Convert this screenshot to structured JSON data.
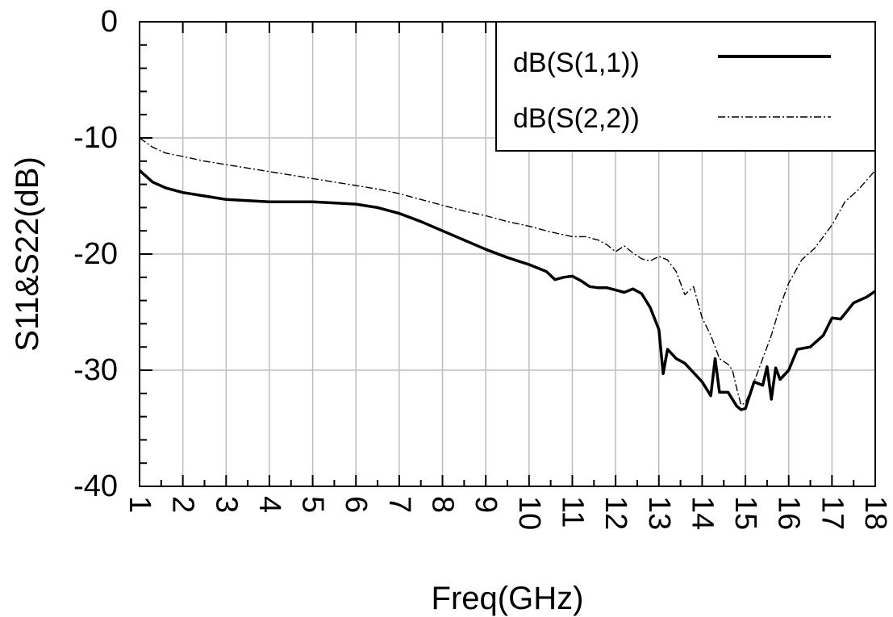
{
  "chart_data": {
    "type": "line",
    "xlabel": "Freq(GHz)",
    "ylabel": "S11&S22(dB)",
    "xlim": [
      1,
      18
    ],
    "ylim": [
      -40,
      0
    ],
    "x_ticks": [
      1,
      2,
      3,
      4,
      5,
      6,
      7,
      8,
      9,
      10,
      11,
      12,
      13,
      14,
      15,
      16,
      17,
      18
    ],
    "y_ticks": [
      0,
      -10,
      -20,
      -30,
      -40
    ],
    "grid": true,
    "legend": {
      "position": "top-right"
    },
    "series": [
      {
        "name": "dB(S(1,1))",
        "color": "#000000",
        "style": "solid",
        "x": [
          1,
          1.3,
          1.6,
          2,
          2.5,
          3,
          3.5,
          4,
          4.5,
          5,
          5.5,
          6,
          6.5,
          7,
          7.5,
          8,
          8.5,
          9,
          9.5,
          10,
          10.4,
          10.6,
          10.8,
          11,
          11.2,
          11.4,
          11.6,
          11.8,
          12,
          12.2,
          12.4,
          12.6,
          12.8,
          13.0,
          13.1,
          13.2,
          13.4,
          13.6,
          13.8,
          14.0,
          14.2,
          14.3,
          14.4,
          14.6,
          14.8,
          14.9,
          15.0,
          15.2,
          15.4,
          15.5,
          15.6,
          15.7,
          15.8,
          16.0,
          16.2,
          16.5,
          16.8,
          17.0,
          17.2,
          17.5,
          17.8,
          18.0
        ],
        "y": [
          -12.8,
          -13.8,
          -14.3,
          -14.7,
          -15.0,
          -15.3,
          -15.4,
          -15.5,
          -15.5,
          -15.5,
          -15.6,
          -15.7,
          -16.0,
          -16.5,
          -17.2,
          -18.0,
          -18.8,
          -19.6,
          -20.3,
          -20.9,
          -21.5,
          -22.2,
          -22.0,
          -21.9,
          -22.3,
          -22.8,
          -22.9,
          -22.9,
          -23.1,
          -23.3,
          -23.0,
          -23.4,
          -24.6,
          -26.5,
          -30.3,
          -28.2,
          -29.0,
          -29.4,
          -30.2,
          -31.0,
          -32.2,
          -29.0,
          -31.9,
          -31.9,
          -33.1,
          -33.4,
          -33.3,
          -31.0,
          -31.3,
          -29.7,
          -32.5,
          -29.8,
          -30.8,
          -30.0,
          -28.2,
          -28.0,
          -27.0,
          -25.5,
          -25.6,
          -24.2,
          -23.7,
          -23.2
        ]
      },
      {
        "name": "dB(S(2,2))",
        "color": "#000000",
        "style": "dash-dot",
        "x": [
          1,
          1.3,
          1.6,
          2,
          2.5,
          3,
          3.5,
          4,
          4.5,
          5,
          5.5,
          6,
          6.5,
          7,
          7.5,
          8,
          8.5,
          9,
          9.5,
          10,
          10.5,
          11,
          11.3,
          11.6,
          11.8,
          12,
          12.2,
          12.4,
          12.6,
          12.8,
          13.0,
          13.2,
          13.4,
          13.6,
          13.8,
          14.0,
          14.2,
          14.4,
          14.6,
          14.7,
          14.8,
          14.9,
          15.0,
          15.2,
          15.4,
          15.6,
          15.8,
          16.0,
          16.3,
          16.6,
          17.0,
          17.3,
          17.6,
          18.0
        ],
        "y": [
          -10.0,
          -10.8,
          -11.3,
          -11.6,
          -12.0,
          -12.3,
          -12.6,
          -12.9,
          -13.2,
          -13.5,
          -13.8,
          -14.1,
          -14.4,
          -14.8,
          -15.3,
          -15.8,
          -16.3,
          -16.7,
          -17.2,
          -17.6,
          -18.1,
          -18.5,
          -18.5,
          -18.8,
          -19.2,
          -19.8,
          -19.3,
          -19.9,
          -20.4,
          -20.6,
          -20.2,
          -20.5,
          -21.5,
          -23.5,
          -22.8,
          -25.5,
          -27.0,
          -29.0,
          -29.5,
          -30.0,
          -31.6,
          -33.0,
          -32.8,
          -31.0,
          -29.0,
          -27.0,
          -24.5,
          -22.5,
          -20.5,
          -19.5,
          -17.5,
          -15.5,
          -14.5,
          -12.8
        ]
      }
    ]
  }
}
